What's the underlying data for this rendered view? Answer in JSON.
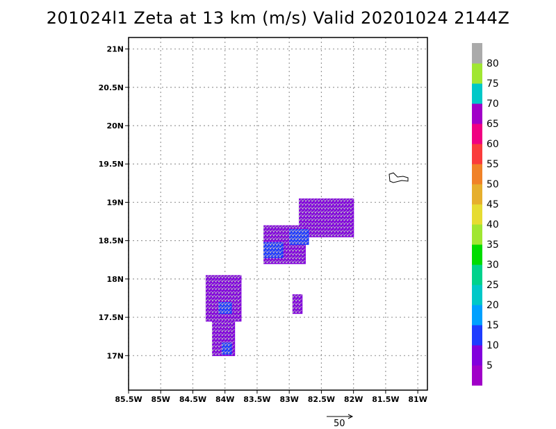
{
  "title": "201024l1 Zeta at 13 km (m/s) Valid 20201024 2144Z",
  "chart_data": {
    "type": "heatmap",
    "title": "201024l1 Zeta at 13 km (m/s) Valid 20201024 2144Z",
    "xlabel": "",
    "ylabel": "",
    "xlim": [
      -85.5,
      -80.85
    ],
    "ylim": [
      16.55,
      21.15
    ],
    "x_ticks": [
      -85.5,
      -85,
      -84.5,
      -84,
      -83.5,
      -83,
      -82.5,
      -82,
      -81.5,
      -81
    ],
    "x_tick_labels": [
      "85.5W",
      "85W",
      "84.5W",
      "84W",
      "83.5W",
      "83W",
      "82.5W",
      "82W",
      "81.5W",
      "81W"
    ],
    "y_ticks": [
      17,
      17.5,
      18,
      18.5,
      19,
      19.5,
      20,
      20.5,
      21
    ],
    "y_tick_labels": [
      "17N",
      "17.5N",
      "18N",
      "18.5N",
      "19N",
      "19.5N",
      "20N",
      "20.5N",
      "21N"
    ],
    "grid": true,
    "colorbar": {
      "colors": [
        "#a000c8",
        "#8200dc",
        "#1e3cff",
        "#00a0ff",
        "#00c8c8",
        "#00d28c",
        "#00dc00",
        "#a0e632",
        "#e6dc32",
        "#e6af2d",
        "#f08228",
        "#fa3c3c",
        "#f00082",
        "#a000c8",
        "#00c8c8",
        "#a0e632",
        "#aaaaaa"
      ],
      "tick_labels": [
        "5",
        "10",
        "15",
        "20",
        "25",
        "30",
        "35",
        "40",
        "45",
        "50",
        "55",
        "60",
        "65",
        "70",
        "75",
        "80"
      ]
    },
    "regions": [
      {
        "lon_min": -82.85,
        "lon_max": -82.0,
        "lat_min": 18.55,
        "lat_max": 19.05,
        "value": 6
      },
      {
        "lon_min": -83.4,
        "lon_max": -82.75,
        "lat_min": 18.2,
        "lat_max": 18.7,
        "value": 6
      },
      {
        "lon_min": -83.4,
        "lon_max": -83.1,
        "lat_min": 18.28,
        "lat_max": 18.48,
        "value": 12
      },
      {
        "lon_min": -83.0,
        "lon_max": -82.7,
        "lat_min": 18.45,
        "lat_max": 18.62,
        "value": 12
      },
      {
        "lon_min": -84.3,
        "lon_max": -83.75,
        "lat_min": 17.45,
        "lat_max": 18.05,
        "value": 6
      },
      {
        "lon_min": -84.1,
        "lon_max": -83.9,
        "lat_min": 17.55,
        "lat_max": 17.7,
        "value": 12
      },
      {
        "lon_min": -84.2,
        "lon_max": -83.85,
        "lat_min": 17.0,
        "lat_max": 17.45,
        "value": 6
      },
      {
        "lon_min": -84.05,
        "lon_max": -83.9,
        "lat_min": 17.02,
        "lat_max": 17.15,
        "value": 12
      },
      {
        "lon_min": -82.95,
        "lon_max": -82.8,
        "lat_min": 17.55,
        "lat_max": 17.8,
        "value": 6
      }
    ],
    "reference_vector": {
      "value": 50,
      "label": "50"
    }
  }
}
